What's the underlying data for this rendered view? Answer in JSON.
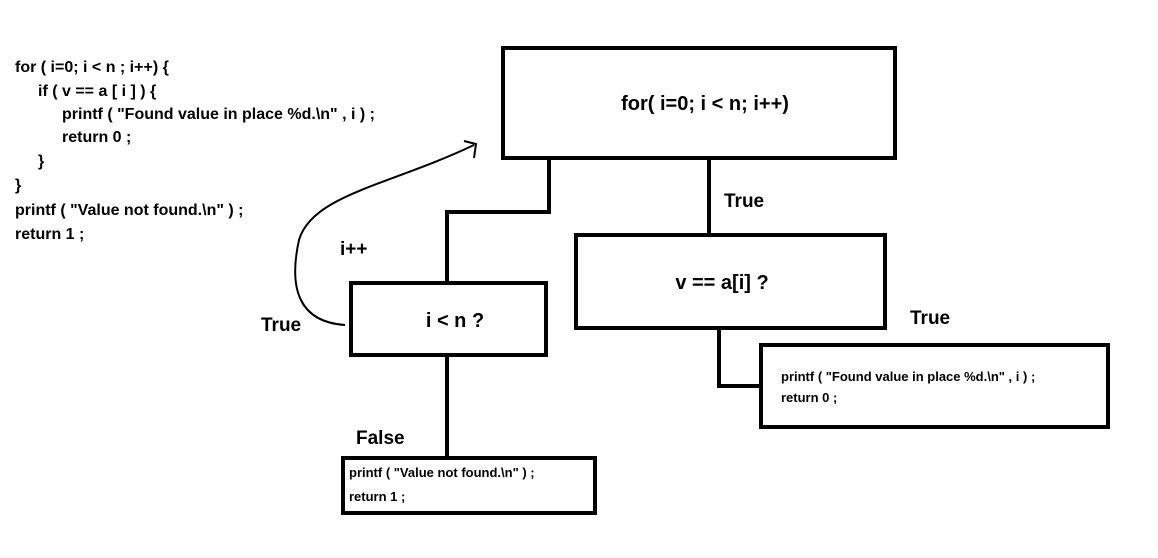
{
  "code": {
    "lines": [
      "for ( i=0; i < n ; i++) {",
      "if ( v == a [ i ] ) {",
      "printf ( \"Found value in place %d.\\n\" , i ) ;",
      "return 0 ;",
      "}",
      "}",
      "printf ( \"Value not found.\\n\" ) ;",
      "return 1 ;"
    ]
  },
  "nodes": [
    {
      "label": "for( i=0; i < n; i++)"
    },
    {
      "label": "v == a[i] ?"
    },
    {
      "label": "i < n ?"
    },
    {
      "lines": [
        "printf ( \"Found value in place %d.\\n\" , i ) ;",
        "return 0 ;"
      ]
    },
    {
      "lines": [
        "printf ( \"Value not found.\\n\" ) ;",
        "return 1 ;"
      ]
    }
  ],
  "edges": [
    {
      "label": "True"
    },
    {
      "label": "True"
    },
    {
      "label": "True"
    },
    {
      "label": "i++"
    },
    {
      "label": "False"
    }
  ]
}
